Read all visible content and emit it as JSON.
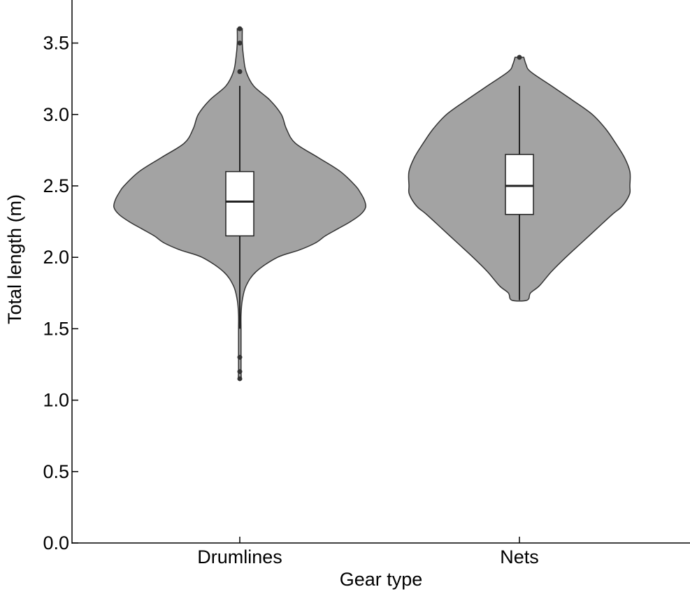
{
  "chart_data": {
    "type": "violin",
    "xlabel": "Gear type",
    "ylabel": "Total length (m)",
    "ylim": [
      0.0,
      3.75
    ],
    "yticks": [
      "0.0",
      "0.5",
      "1.0",
      "1.5",
      "2.0",
      "2.5",
      "3.0",
      "3.5"
    ],
    "categories": [
      "Drumlines",
      "Nets"
    ],
    "colors": {
      "violin_fill": "#a3a3a3",
      "violin_stroke": "#333333",
      "box_fill": "#ffffff",
      "outlier": "#333333"
    },
    "series": [
      {
        "category": "Drumlines",
        "box": {
          "whisker_low": 1.5,
          "q1": 2.15,
          "median": 2.39,
          "q3": 2.6,
          "whisker_high": 3.2
        },
        "outliers": [
          3.6,
          3.5,
          3.3,
          1.3,
          1.2,
          1.15
        ],
        "density": [
          [
            3.6,
            0.02
          ],
          [
            3.5,
            0.02
          ],
          [
            3.4,
            0.03
          ],
          [
            3.3,
            0.05
          ],
          [
            3.2,
            0.11
          ],
          [
            3.1,
            0.24
          ],
          [
            3.0,
            0.33
          ],
          [
            2.9,
            0.37
          ],
          [
            2.8,
            0.44
          ],
          [
            2.7,
            0.62
          ],
          [
            2.6,
            0.8
          ],
          [
            2.5,
            0.92
          ],
          [
            2.45,
            0.96
          ],
          [
            2.4,
            0.99
          ],
          [
            2.35,
            1.0
          ],
          [
            2.3,
            0.96
          ],
          [
            2.25,
            0.88
          ],
          [
            2.2,
            0.78
          ],
          [
            2.15,
            0.68
          ],
          [
            2.1,
            0.6
          ],
          [
            2.05,
            0.47
          ],
          [
            2.0,
            0.3
          ],
          [
            1.9,
            0.13
          ],
          [
            1.8,
            0.05
          ],
          [
            1.7,
            0.02
          ],
          [
            1.6,
            0.01
          ],
          [
            1.5,
            0.01
          ],
          [
            1.4,
            0.01
          ],
          [
            1.3,
            0.01
          ],
          [
            1.2,
            0.01
          ],
          [
            1.15,
            0.01
          ]
        ]
      },
      {
        "category": "Nets",
        "box": {
          "whisker_low": 1.7,
          "q1": 2.3,
          "median": 2.5,
          "q3": 2.72,
          "whisker_high": 3.2
        },
        "outliers": [
          3.4
        ],
        "density": [
          [
            3.4,
            0.04
          ],
          [
            3.35,
            0.06
          ],
          [
            3.3,
            0.1
          ],
          [
            3.2,
            0.29
          ],
          [
            3.1,
            0.48
          ],
          [
            3.0,
            0.66
          ],
          [
            2.9,
            0.78
          ],
          [
            2.8,
            0.87
          ],
          [
            2.7,
            0.95
          ],
          [
            2.6,
            1.0
          ],
          [
            2.5,
            1.0
          ],
          [
            2.45,
            1.0
          ],
          [
            2.4,
            0.97
          ],
          [
            2.35,
            0.92
          ],
          [
            2.3,
            0.84
          ],
          [
            2.2,
            0.7
          ],
          [
            2.1,
            0.56
          ],
          [
            2.0,
            0.42
          ],
          [
            1.9,
            0.29
          ],
          [
            1.8,
            0.18
          ],
          [
            1.75,
            0.1
          ],
          [
            1.7,
            0.07
          ]
        ]
      }
    ]
  }
}
